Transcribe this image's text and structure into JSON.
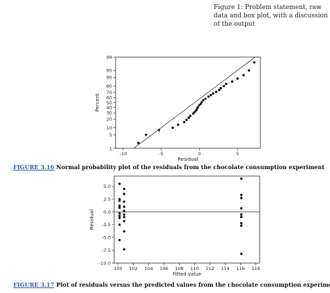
{
  "note": "Figure 1: Problem statement, raw data and box plot, with a discussion of the output",
  "captions": {
    "fig1_label": "FIGURE 3.16",
    "fig1_text": " Normal probability plot of the residuals from the chocolate consumption experiment",
    "fig2_label": "FIGURE 3.17",
    "fig2_text": " Plot of residuals versus the predicted values from the chocolate consumption experiment"
  },
  "chart_data": [
    {
      "type": "scatter",
      "subtype": "normal-probability",
      "xlabel": "Residual",
      "ylabel": "Percent",
      "xlim": [
        -11,
        8
      ],
      "xticks": [
        -10,
        -5,
        0,
        5
      ],
      "xtick_labels": [
        "-10",
        "-5",
        "0",
        "5"
      ],
      "yticks": [
        1,
        5,
        10,
        20,
        30,
        40,
        50,
        60,
        70,
        80,
        90,
        95,
        99
      ],
      "yscale": "normal-probability",
      "grid": false,
      "reference_line": {
        "from": [
          -8.6,
          1
        ],
        "to": [
          7.3,
          99
        ]
      },
      "points": [
        [
          -8,
          2
        ],
        [
          -7,
          5
        ],
        [
          -5.3,
          8
        ],
        [
          -3.5,
          10
        ],
        [
          -2.8,
          13
        ],
        [
          -2,
          16
        ],
        [
          -1.7,
          19
        ],
        [
          -1.4,
          22
        ],
        [
          -1.2,
          25
        ],
        [
          -0.8,
          29
        ],
        [
          -0.6,
          32
        ],
        [
          -0.4,
          35
        ],
        [
          -0.3,
          38
        ],
        [
          -0.2,
          41
        ],
        [
          0,
          45
        ],
        [
          0.2,
          48
        ],
        [
          0.3,
          51
        ],
        [
          0.5,
          55
        ],
        [
          0.8,
          58
        ],
        [
          1.2,
          62
        ],
        [
          1.5,
          65
        ],
        [
          1.8,
          68
        ],
        [
          2.2,
          71
        ],
        [
          2.6,
          74
        ],
        [
          2.8,
          77
        ],
        [
          3.2,
          80
        ],
        [
          3.5,
          83
        ],
        [
          4.3,
          86
        ],
        [
          5,
          89
        ],
        [
          5.8,
          92
        ],
        [
          6.5,
          95
        ],
        [
          7.2,
          98
        ]
      ]
    },
    {
      "type": "scatter",
      "xlabel": "Fitted value",
      "ylabel": "Residual",
      "xlim": [
        99.5,
        118.5
      ],
      "ylim": [
        -10.0,
        7.0
      ],
      "xticks": [
        100,
        102,
        104,
        106,
        108,
        110,
        112,
        114,
        116,
        118
      ],
      "xtick_labels": [
        "100",
        "102",
        "104",
        "106",
        "108",
        "110",
        "112",
        "114",
        "116",
        "118"
      ],
      "yticks": [
        -10.0,
        -7.5,
        -5.0,
        -2.5,
        0.0,
        2.5,
        5.0
      ],
      "ytick_labels": [
        "-10.0",
        "-7.5",
        "-5.0",
        "-2.5",
        "0.0",
        "2.5",
        "5.0"
      ],
      "reference_line_y": 0,
      "grid": false,
      "points": [
        [
          100.2,
          5.5
        ],
        [
          100.2,
          2.5
        ],
        [
          100.2,
          2.2
        ],
        [
          100.2,
          1.2
        ],
        [
          100.2,
          0.8
        ],
        [
          100.2,
          -0.3
        ],
        [
          100.2,
          -0.8
        ],
        [
          100.2,
          -1.2
        ],
        [
          100.2,
          -2.5
        ],
        [
          100.2,
          -5.5
        ],
        [
          100.8,
          4.5
        ],
        [
          100.8,
          3.5
        ],
        [
          100.8,
          2.0
        ],
        [
          100.8,
          1.0
        ],
        [
          100.8,
          0.2
        ],
        [
          100.8,
          -0.5
        ],
        [
          100.8,
          -1.0
        ],
        [
          100.8,
          -1.8
        ],
        [
          100.8,
          -3.8
        ],
        [
          100.8,
          -7.3
        ],
        [
          116.1,
          6.5
        ],
        [
          116.1,
          3.3
        ],
        [
          116.1,
          2.7
        ],
        [
          116.1,
          0.7
        ],
        [
          116.1,
          -0.5
        ],
        [
          116.1,
          -1.0
        ],
        [
          116.1,
          -2.2
        ],
        [
          116.1,
          -2.7
        ],
        [
          116.1,
          -8.2
        ]
      ]
    }
  ]
}
